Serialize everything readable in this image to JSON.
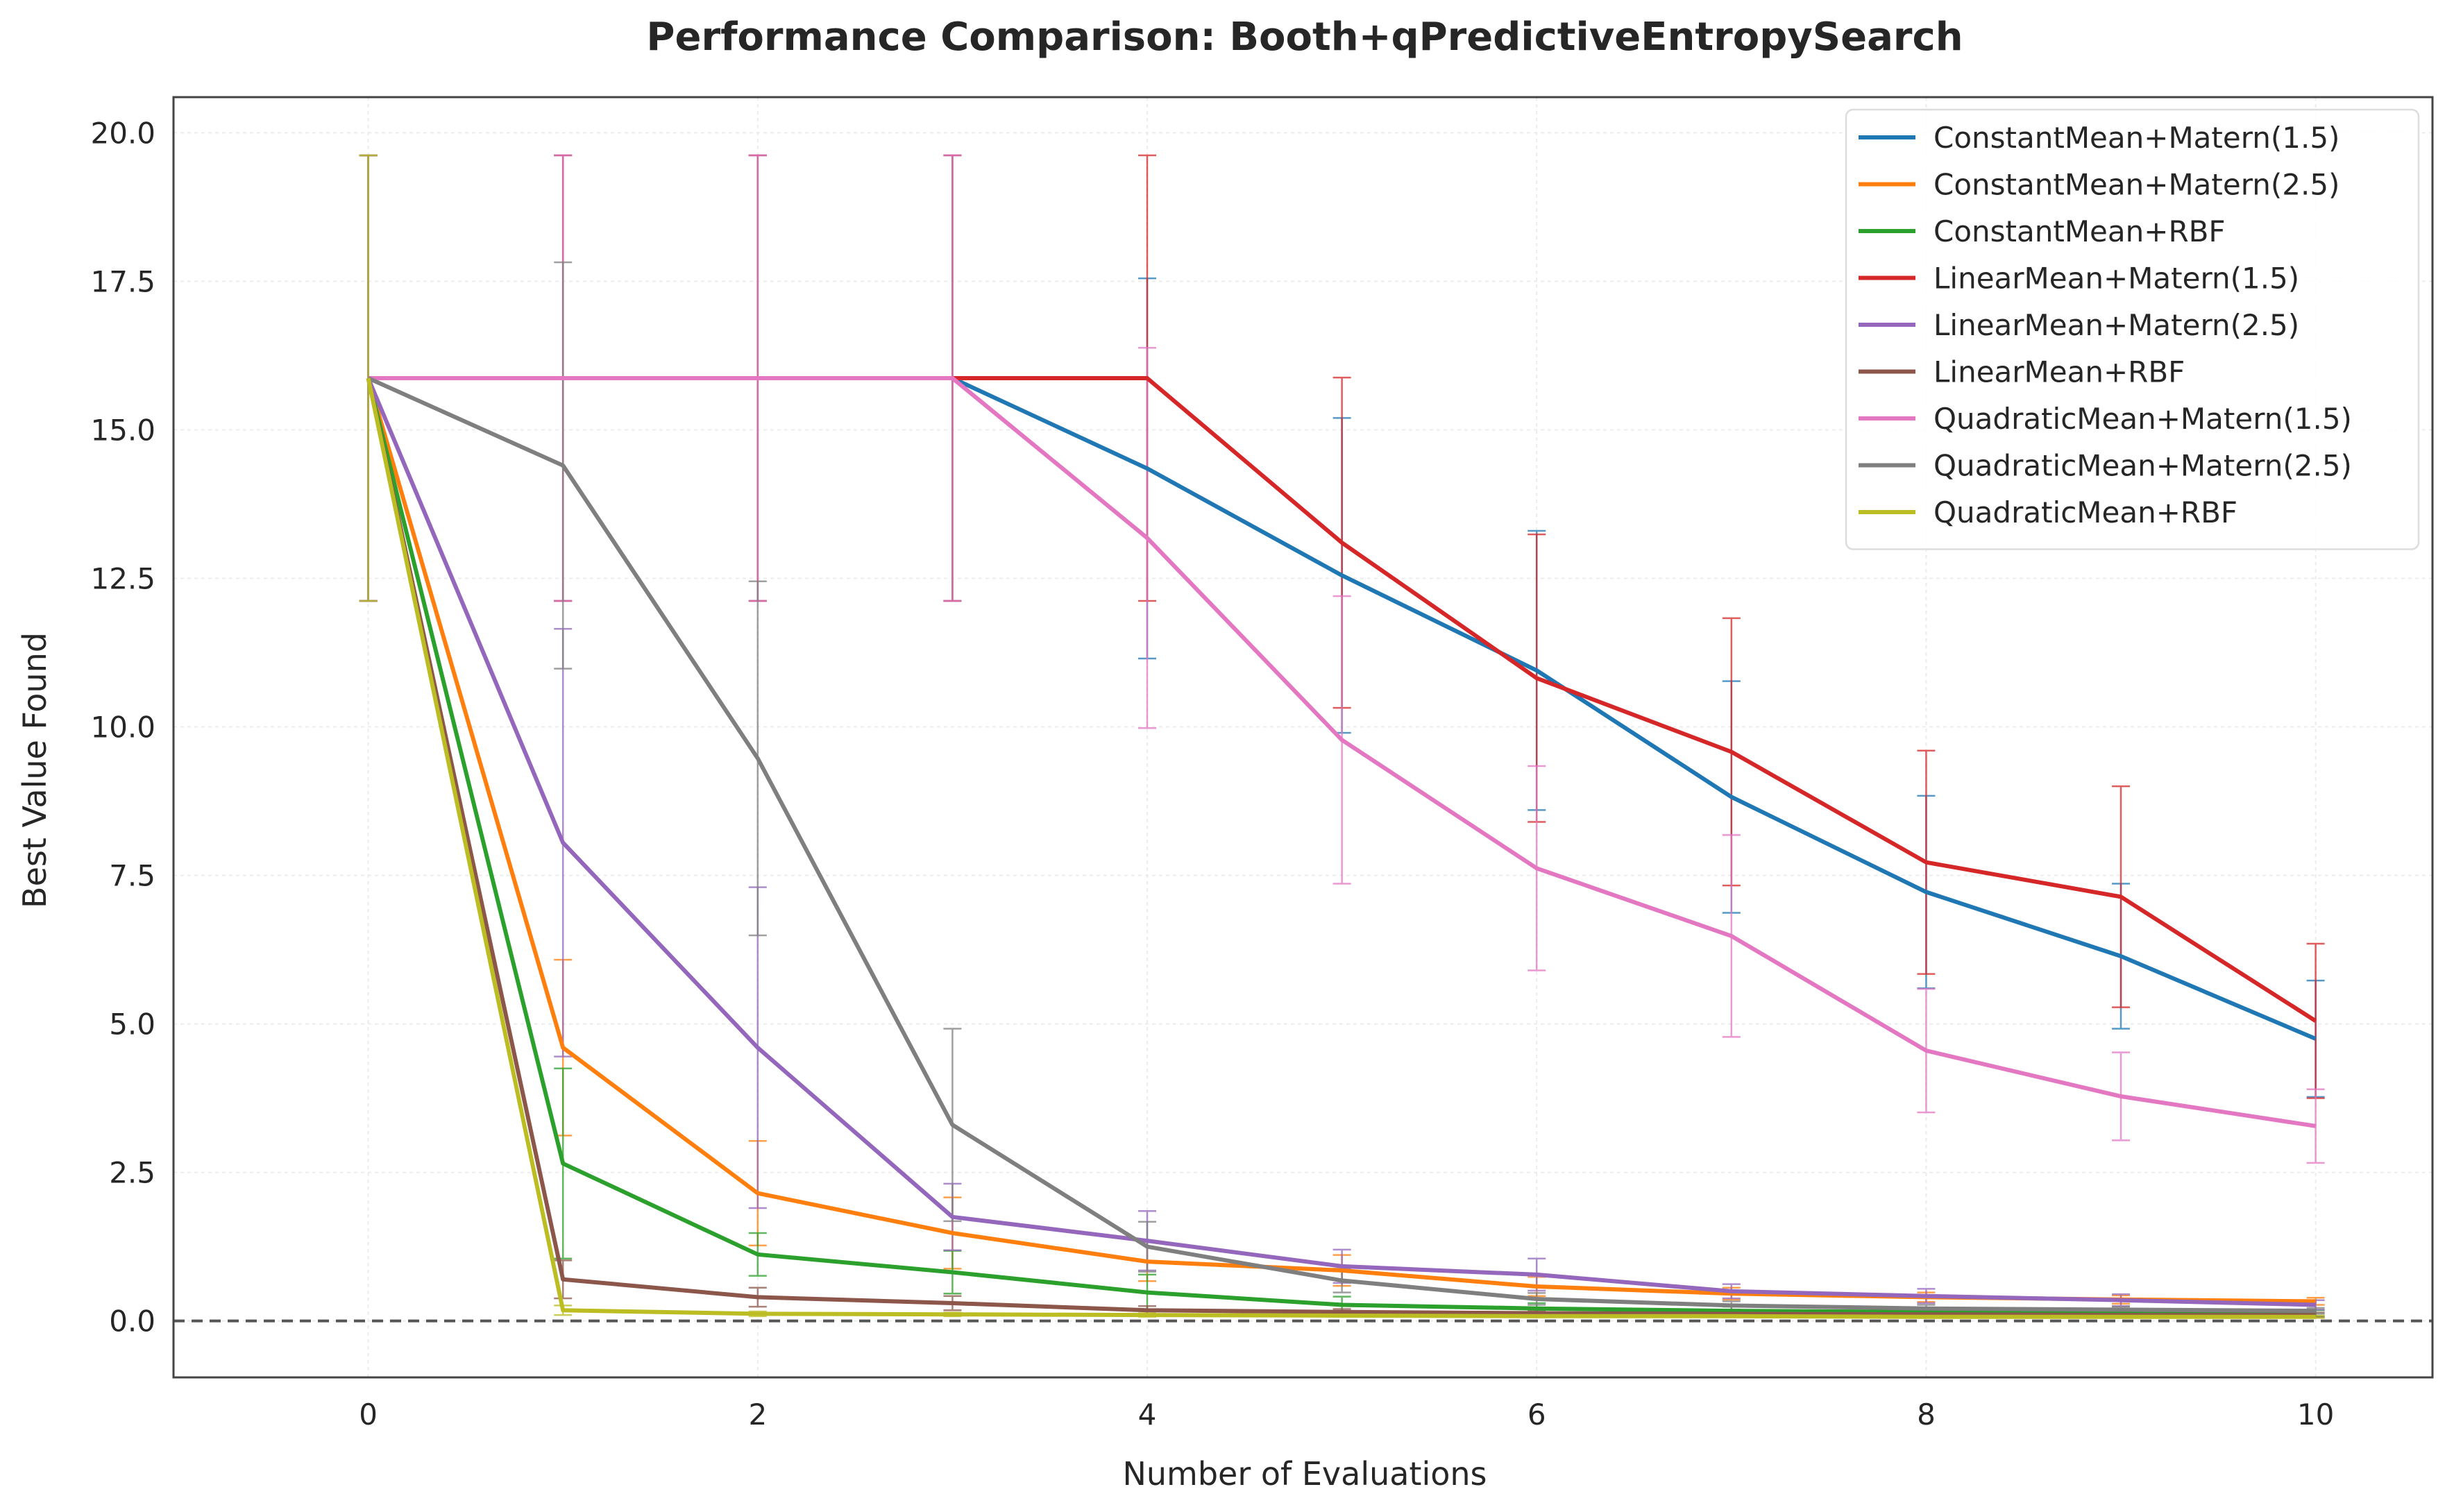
{
  "chart_data": {
    "type": "line",
    "title": "Performance Comparison: Booth+qPredictiveEntropySearch",
    "xlabel": "Number of Evaluations",
    "ylabel": "Best Value Found",
    "xlim": [
      -1,
      10.6
    ],
    "ylim": [
      -0.95,
      20.6
    ],
    "xticks": [
      "0",
      "2",
      "4",
      "6",
      "8",
      "10"
    ],
    "yticks": [
      "0.0",
      "2.5",
      "5.0",
      "7.5",
      "10.0",
      "12.5",
      "15.0",
      "17.5",
      "20.0"
    ],
    "grid": true,
    "legend_position": "top-right",
    "reference_line": {
      "y": 0,
      "style": "dashed",
      "color": "#555555"
    },
    "x": [
      0,
      1,
      2,
      3,
      4,
      5,
      6,
      7,
      8,
      9,
      10
    ],
    "series": [
      {
        "name": "ConstantMean+Matern(1.5)",
        "color": "#1f77b4",
        "values": [
          15.87,
          15.87,
          15.87,
          15.87,
          14.35,
          12.55,
          10.95,
          8.82,
          7.22,
          6.14,
          4.75
        ],
        "errors": [
          3.75,
          3.75,
          3.75,
          3.75,
          3.2,
          2.65,
          2.35,
          1.95,
          1.62,
          1.22,
          0.98
        ]
      },
      {
        "name": "ConstantMean+Matern(2.5)",
        "color": "#ff7f0e",
        "values": [
          15.87,
          4.6,
          2.15,
          1.48,
          1.0,
          0.85,
          0.58,
          0.46,
          0.4,
          0.36,
          0.33
        ],
        "errors": [
          3.75,
          1.48,
          0.88,
          0.6,
          0.33,
          0.26,
          0.16,
          0.1,
          0.08,
          0.07,
          0.06
        ]
      },
      {
        "name": "ConstantMean+RBF",
        "color": "#2ca02c",
        "values": [
          15.87,
          2.65,
          1.12,
          0.82,
          0.48,
          0.27,
          0.21,
          0.17,
          0.15,
          0.14,
          0.13
        ],
        "errors": [
          3.75,
          1.6,
          0.36,
          0.36,
          0.3,
          0.14,
          0.09,
          0.07,
          0.06,
          0.05,
          0.05
        ]
      },
      {
        "name": "LinearMean+Matern(1.5)",
        "color": "#d62728",
        "values": [
          15.87,
          15.87,
          15.87,
          15.87,
          15.87,
          13.1,
          10.82,
          9.58,
          7.72,
          7.14,
          5.05
        ],
        "errors": [
          3.75,
          3.75,
          3.75,
          3.75,
          3.75,
          2.78,
          2.42,
          2.25,
          1.88,
          1.86,
          1.3
        ]
      },
      {
        "name": "LinearMean+Matern(2.5)",
        "color": "#9467bd",
        "values": [
          15.87,
          8.05,
          4.6,
          1.75,
          1.35,
          0.92,
          0.78,
          0.5,
          0.42,
          0.35,
          0.27
        ],
        "errors": [
          3.75,
          3.6,
          2.7,
          0.56,
          0.5,
          0.28,
          0.27,
          0.12,
          0.12,
          0.1,
          0.08
        ]
      },
      {
        "name": "LinearMean+RBF",
        "color": "#8c564b",
        "values": [
          15.87,
          0.7,
          0.4,
          0.3,
          0.18,
          0.15,
          0.13,
          0.12,
          0.11,
          0.1,
          0.1
        ],
        "errors": [
          3.75,
          0.32,
          0.16,
          0.12,
          0.07,
          0.05,
          0.05,
          0.04,
          0.04,
          0.04,
          0.04
        ]
      },
      {
        "name": "QuadraticMean+Matern(1.5)",
        "color": "#e377c2",
        "values": [
          15.87,
          15.87,
          15.87,
          15.87,
          13.18,
          9.78,
          7.62,
          6.48,
          4.55,
          3.78,
          3.28
        ],
        "errors": [
          3.75,
          3.75,
          3.75,
          3.75,
          3.2,
          2.42,
          1.72,
          1.7,
          1.04,
          0.74,
          0.62
        ]
      },
      {
        "name": "QuadraticMean+Matern(2.5)",
        "color": "#7f7f7f",
        "values": [
          15.87,
          14.4,
          9.47,
          3.3,
          1.25,
          0.68,
          0.37,
          0.26,
          0.21,
          0.19,
          0.17
        ],
        "errors": [
          3.75,
          3.42,
          2.98,
          1.62,
          0.42,
          0.2,
          0.1,
          0.07,
          0.06,
          0.05,
          0.05
        ]
      },
      {
        "name": "QuadraticMean+RBF",
        "color": "#bcbd22",
        "values": [
          15.87,
          0.18,
          0.12,
          0.11,
          0.1,
          0.09,
          0.08,
          0.08,
          0.07,
          0.07,
          0.07
        ],
        "errors": [
          3.75,
          0.08,
          0.04,
          0.03,
          0.03,
          0.02,
          0.02,
          0.02,
          0.02,
          0.02,
          0.02
        ]
      }
    ]
  }
}
